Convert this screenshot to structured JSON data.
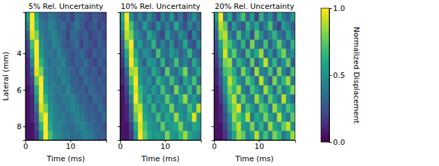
{
  "chart_data": [
    {
      "type": "heatmap",
      "title": "5% Rel. Uncertainty",
      "xlabel": "Time (ms)",
      "ylabel": "Lateral (mm)",
      "xlim": [
        0,
        18
      ],
      "xticks": [
        0,
        10
      ],
      "ylim": [
        8.75,
        1.75
      ],
      "yticks": [
        4,
        6,
        8
      ],
      "x": [
        0.5,
        1.5,
        2.5,
        3.5,
        4.5,
        5.5,
        6.5,
        7.5,
        8.5,
        9.5,
        10.5,
        11.5,
        12.5,
        13.5,
        14.5,
        15.5,
        16.5,
        17.5
      ],
      "y": [
        2,
        2.5,
        3,
        3.5,
        4,
        4.5,
        5,
        5.5,
        6,
        6.5,
        7,
        7.5,
        8,
        8.5
      ],
      "cells": [
        [
          0.55,
          1.0,
          0.6,
          0.35,
          0.3,
          0.4,
          0.35,
          0.3,
          0.25,
          0.3,
          0.2,
          0.35,
          0.3,
          0.25,
          0.2,
          0.3,
          0.25,
          0.2
        ],
        [
          0.45,
          1.0,
          0.65,
          0.4,
          0.35,
          0.45,
          0.4,
          0.3,
          0.35,
          0.25,
          0.3,
          0.4,
          0.3,
          0.2,
          0.25,
          0.3,
          0.2,
          0.25
        ],
        [
          0.3,
          0.95,
          0.8,
          0.45,
          0.35,
          0.4,
          0.45,
          0.35,
          0.3,
          0.2,
          0.35,
          0.3,
          0.25,
          0.3,
          0.2,
          0.25,
          0.3,
          0.2
        ],
        [
          0.2,
          0.7,
          1.0,
          0.5,
          0.4,
          0.35,
          0.45,
          0.4,
          0.3,
          0.25,
          0.3,
          0.35,
          0.2,
          0.3,
          0.25,
          0.2,
          0.3,
          0.25
        ],
        [
          0.15,
          0.6,
          1.0,
          0.55,
          0.4,
          0.4,
          0.35,
          0.45,
          0.35,
          0.3,
          0.25,
          0.3,
          0.35,
          0.25,
          0.2,
          0.3,
          0.25,
          0.3
        ],
        [
          0.1,
          0.45,
          1.0,
          0.65,
          0.45,
          0.35,
          0.4,
          0.4,
          0.45,
          0.3,
          0.25,
          0.3,
          0.3,
          0.35,
          0.25,
          0.2,
          0.3,
          0.25
        ],
        [
          0.1,
          0.3,
          0.95,
          0.8,
          0.45,
          0.4,
          0.35,
          0.45,
          0.4,
          0.35,
          0.3,
          0.25,
          0.35,
          0.3,
          0.25,
          0.3,
          0.2,
          0.3
        ],
        [
          0.1,
          0.2,
          0.75,
          1.0,
          0.5,
          0.4,
          0.4,
          0.35,
          0.45,
          0.4,
          0.3,
          0.3,
          0.25,
          0.35,
          0.3,
          0.25,
          0.3,
          0.25
        ],
        [
          0.05,
          0.15,
          0.6,
          1.0,
          0.55,
          0.45,
          0.4,
          0.4,
          0.35,
          0.45,
          0.35,
          0.3,
          0.3,
          0.25,
          0.35,
          0.3,
          0.25,
          0.3
        ],
        [
          0.05,
          0.1,
          0.5,
          1.0,
          0.65,
          0.45,
          0.4,
          0.35,
          0.4,
          0.4,
          0.45,
          0.35,
          0.3,
          0.3,
          0.25,
          0.35,
          0.3,
          0.25
        ],
        [
          0.05,
          0.1,
          0.35,
          0.95,
          0.8,
          0.5,
          0.45,
          0.4,
          0.35,
          0.4,
          0.45,
          0.4,
          0.35,
          0.3,
          0.3,
          0.25,
          0.35,
          0.3
        ],
        [
          0.05,
          0.1,
          0.25,
          0.8,
          1.0,
          0.55,
          0.45,
          0.4,
          0.4,
          0.35,
          0.4,
          0.45,
          0.4,
          0.35,
          0.3,
          0.3,
          0.25,
          0.35
        ],
        [
          0.05,
          0.05,
          0.2,
          0.65,
          1.0,
          0.6,
          0.45,
          0.45,
          0.4,
          0.35,
          0.35,
          0.4,
          0.45,
          0.4,
          0.35,
          0.3,
          0.3,
          0.25
        ],
        [
          0.05,
          0.05,
          0.15,
          0.5,
          1.0,
          0.7,
          0.5,
          0.45,
          0.4,
          0.4,
          0.35,
          0.35,
          0.4,
          0.45,
          0.4,
          0.35,
          0.3,
          0.3
        ]
      ]
    },
    {
      "type": "heatmap",
      "title": "10% Rel. Uncertainty",
      "xlabel": "Time (ms)",
      "tick_labels": "x",
      "xlim": [
        0,
        18
      ],
      "xticks": [
        0,
        10
      ],
      "ylim": [
        8.75,
        1.75
      ],
      "yticks": [
        4,
        6,
        8
      ],
      "x": [
        0.5,
        1.5,
        2.5,
        3.5,
        4.5,
        5.5,
        6.5,
        7.5,
        8.5,
        9.5,
        10.5,
        11.5,
        12.5,
        13.5,
        14.5,
        15.5,
        16.5,
        17.5
      ],
      "y": [
        2,
        2.5,
        3,
        3.5,
        4,
        4.5,
        5,
        5.5,
        6,
        6.5,
        7,
        7.5,
        8,
        8.5
      ],
      "cells": [
        [
          0.6,
          1.0,
          0.5,
          0.3,
          0.45,
          0.3,
          0.5,
          0.35,
          0.2,
          0.45,
          0.3,
          0.55,
          0.25,
          0.4,
          0.2,
          0.35,
          0.5,
          0.3
        ],
        [
          0.5,
          0.95,
          0.7,
          0.4,
          0.3,
          0.55,
          0.35,
          0.25,
          0.5,
          0.3,
          0.45,
          0.3,
          0.6,
          0.35,
          0.25,
          0.45,
          0.3,
          0.4
        ],
        [
          0.35,
          0.9,
          0.8,
          0.5,
          0.4,
          0.3,
          0.6,
          0.45,
          0.3,
          0.2,
          0.55,
          0.35,
          0.3,
          0.5,
          0.4,
          0.2,
          0.45,
          0.3
        ],
        [
          0.25,
          0.75,
          1.0,
          0.45,
          0.55,
          0.35,
          0.4,
          0.65,
          0.3,
          0.45,
          0.3,
          0.5,
          0.25,
          0.35,
          0.6,
          0.3,
          0.25,
          0.5
        ],
        [
          0.2,
          0.6,
          0.95,
          0.6,
          0.35,
          0.5,
          0.45,
          0.3,
          0.7,
          0.4,
          0.35,
          0.55,
          0.45,
          0.3,
          0.4,
          0.65,
          0.35,
          0.3
        ],
        [
          0.15,
          0.5,
          1.0,
          0.7,
          0.45,
          0.3,
          0.55,
          0.5,
          0.35,
          0.65,
          0.3,
          0.4,
          0.7,
          0.35,
          0.45,
          0.3,
          0.6,
          0.4
        ],
        [
          0.1,
          0.35,
          0.85,
          0.9,
          0.5,
          0.45,
          0.35,
          0.6,
          0.45,
          0.3,
          0.75,
          0.4,
          0.35,
          0.55,
          0.8,
          0.35,
          0.4,
          0.6
        ],
        [
          0.1,
          0.25,
          0.7,
          1.0,
          0.55,
          0.4,
          0.5,
          0.35,
          0.65,
          0.5,
          0.4,
          0.7,
          0.45,
          0.3,
          0.6,
          0.45,
          0.7,
          0.35
        ],
        [
          0.05,
          0.2,
          0.6,
          0.95,
          0.65,
          0.5,
          0.4,
          0.55,
          0.4,
          0.7,
          0.45,
          0.35,
          0.8,
          0.5,
          0.4,
          0.65,
          0.35,
          0.75
        ],
        [
          0.05,
          0.15,
          0.45,
          1.0,
          0.7,
          0.45,
          0.6,
          0.4,
          0.5,
          0.45,
          0.75,
          0.5,
          0.4,
          0.6,
          0.85,
          0.45,
          0.55,
          0.4
        ],
        [
          0.05,
          0.1,
          0.35,
          0.85,
          0.9,
          0.55,
          0.45,
          0.65,
          0.4,
          0.55,
          0.5,
          0.8,
          0.45,
          0.5,
          0.45,
          0.7,
          0.5,
          0.9
        ],
        [
          0.05,
          0.1,
          0.3,
          0.75,
          1.0,
          0.6,
          0.5,
          0.45,
          0.7,
          0.45,
          0.6,
          0.5,
          0.85,
          0.55,
          0.45,
          0.6,
          0.95,
          0.5
        ],
        [
          0.05,
          0.05,
          0.2,
          0.6,
          0.95,
          0.7,
          0.55,
          0.5,
          0.45,
          0.75,
          0.5,
          0.55,
          0.6,
          0.8,
          0.5,
          0.45,
          0.6,
          0.55
        ],
        [
          0.05,
          0.05,
          0.15,
          0.5,
          1.0,
          0.75,
          0.6,
          0.5,
          0.55,
          0.5,
          0.8,
          0.55,
          0.5,
          0.65,
          0.85,
          0.6,
          0.5,
          0.45
        ]
      ]
    },
    {
      "type": "heatmap",
      "title": "20% Rel. Uncertainty",
      "xlabel": "Time (ms)",
      "tick_labels": "x",
      "xlim": [
        0,
        18
      ],
      "xticks": [
        0,
        10
      ],
      "ylim": [
        8.75,
        1.75
      ],
      "yticks": [
        4,
        6,
        8
      ],
      "x": [
        0.5,
        1.5,
        2.5,
        3.5,
        4.5,
        5.5,
        6.5,
        7.5,
        8.5,
        9.5,
        10.5,
        11.5,
        12.5,
        13.5,
        14.5,
        15.5,
        16.5,
        17.5
      ],
      "y": [
        2,
        2.5,
        3,
        3.5,
        4,
        4.5,
        5,
        5.5,
        6,
        6.5,
        7,
        7.5,
        8,
        8.5
      ],
      "cells": [
        [
          0.55,
          1.0,
          0.4,
          0.6,
          0.25,
          0.5,
          0.7,
          0.3,
          0.55,
          0.2,
          0.65,
          0.35,
          0.5,
          0.25,
          0.6,
          0.4,
          0.3,
          0.55
        ],
        [
          0.4,
          0.9,
          0.75,
          0.3,
          0.55,
          0.35,
          0.25,
          0.65,
          0.4,
          0.6,
          0.3,
          0.45,
          0.7,
          0.35,
          0.2,
          0.55,
          0.45,
          0.3
        ],
        [
          0.3,
          0.8,
          0.9,
          0.45,
          0.3,
          0.7,
          0.4,
          0.55,
          0.25,
          0.75,
          0.5,
          0.3,
          0.45,
          0.65,
          0.4,
          0.3,
          0.6,
          0.4
        ],
        [
          0.25,
          0.6,
          0.85,
          0.7,
          0.5,
          0.35,
          0.65,
          0.3,
          0.8,
          0.4,
          0.35,
          0.7,
          0.3,
          0.5,
          0.75,
          0.45,
          0.3,
          0.65
        ],
        [
          0.2,
          0.5,
          0.95,
          0.55,
          0.75,
          0.4,
          0.3,
          0.7,
          0.45,
          0.6,
          0.85,
          0.35,
          0.55,
          0.3,
          0.6,
          0.8,
          0.4,
          0.5
        ],
        [
          0.15,
          0.4,
          0.8,
          0.85,
          0.4,
          0.65,
          0.5,
          0.35,
          0.75,
          0.3,
          0.55,
          0.9,
          0.4,
          0.65,
          0.35,
          0.5,
          0.75,
          0.3
        ],
        [
          0.1,
          0.3,
          0.7,
          0.75,
          0.6,
          0.35,
          0.8,
          0.55,
          0.3,
          0.85,
          0.45,
          0.4,
          0.7,
          0.35,
          0.8,
          0.45,
          0.3,
          0.7
        ],
        [
          0.1,
          0.25,
          0.55,
          0.9,
          0.7,
          0.5,
          0.4,
          0.75,
          0.6,
          0.35,
          0.9,
          0.5,
          0.3,
          0.8,
          0.45,
          0.65,
          0.85,
          0.4
        ],
        [
          0.05,
          0.2,
          0.5,
          0.8,
          0.65,
          0.85,
          0.45,
          0.35,
          0.7,
          0.55,
          0.4,
          0.85,
          0.6,
          0.35,
          0.7,
          0.4,
          0.55,
          0.8
        ],
        [
          0.05,
          0.15,
          0.4,
          0.7,
          0.9,
          0.5,
          0.75,
          0.45,
          0.4,
          0.85,
          0.6,
          0.35,
          0.75,
          0.55,
          0.4,
          0.9,
          0.5,
          0.35
        ],
        [
          0.05,
          0.1,
          0.3,
          0.65,
          0.8,
          0.95,
          0.45,
          0.7,
          0.55,
          0.4,
          0.75,
          0.65,
          0.4,
          0.85,
          0.6,
          0.45,
          0.7,
          0.6
        ],
        [
          0.05,
          0.1,
          0.25,
          0.5,
          0.85,
          0.7,
          0.6,
          0.9,
          0.4,
          0.6,
          0.5,
          0.8,
          0.55,
          0.45,
          0.9,
          0.55,
          0.4,
          0.75
        ],
        [
          0.05,
          0.05,
          0.2,
          0.45,
          0.7,
          0.9,
          0.55,
          0.5,
          0.8,
          0.45,
          0.65,
          0.4,
          0.85,
          0.6,
          0.5,
          0.75,
          0.9,
          0.5
        ],
        [
          0.05,
          0.05,
          0.15,
          0.35,
          0.6,
          0.85,
          0.75,
          0.45,
          0.55,
          0.9,
          0.5,
          0.7,
          0.45,
          0.8,
          0.65,
          0.4,
          0.55,
          0.85
        ]
      ],
      "colorbar": {
        "label": "Normalized Displacement",
        "range": [
          0,
          1
        ],
        "ticks": [
          {
            "value": 0,
            "label": "0.0"
          },
          {
            "value": 0.5,
            "label": "0.5"
          },
          {
            "value": 1,
            "label": "1.0"
          }
        ]
      }
    }
  ]
}
